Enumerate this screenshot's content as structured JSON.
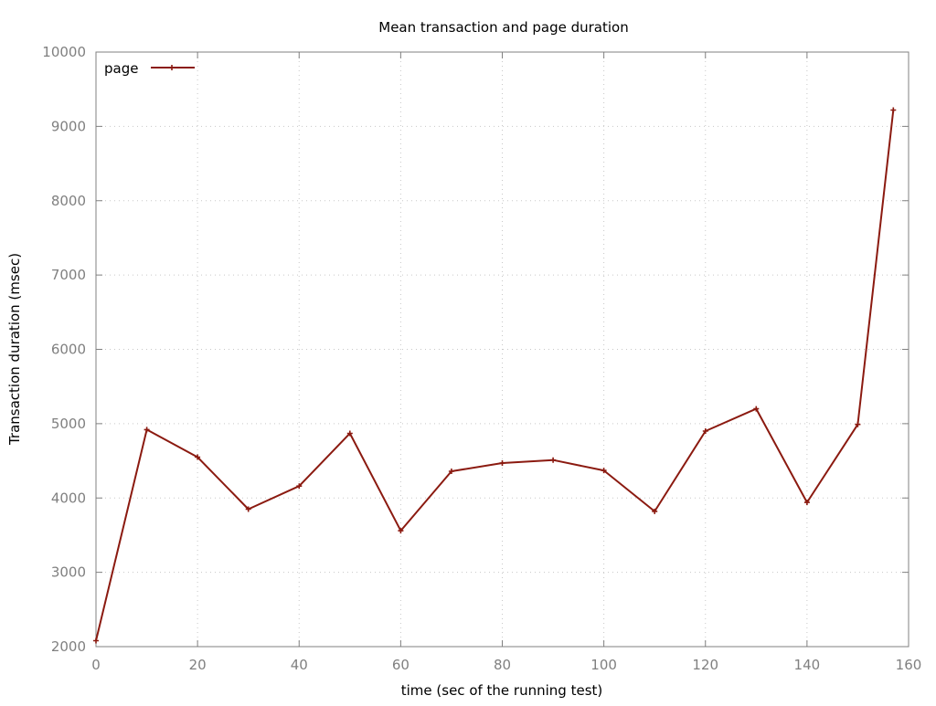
{
  "chart_data": {
    "type": "line",
    "title": "Mean transaction and page duration",
    "xlabel": "time (sec of the running test)",
    "ylabel": "Transaction duration (msec)",
    "xlim": [
      0,
      160
    ],
    "ylim": [
      2000,
      10000
    ],
    "x_ticks": [
      0,
      20,
      40,
      60,
      80,
      100,
      120,
      140,
      160
    ],
    "y_ticks": [
      2000,
      3000,
      4000,
      5000,
      6000,
      7000,
      8000,
      9000,
      10000
    ],
    "grid": true,
    "legend_position": "top-left",
    "series": [
      {
        "name": "page",
        "color": "#8b1a10",
        "marker": "plus",
        "x": [
          0,
          10,
          20,
          30,
          40,
          50,
          60,
          70,
          80,
          90,
          100,
          110,
          120,
          130,
          140,
          150,
          157
        ],
        "y": [
          2080,
          4920,
          4550,
          3850,
          4160,
          4870,
          3560,
          4360,
          4470,
          4510,
          4370,
          3820,
          4900,
          5200,
          3940,
          4990,
          9220
        ]
      }
    ]
  }
}
